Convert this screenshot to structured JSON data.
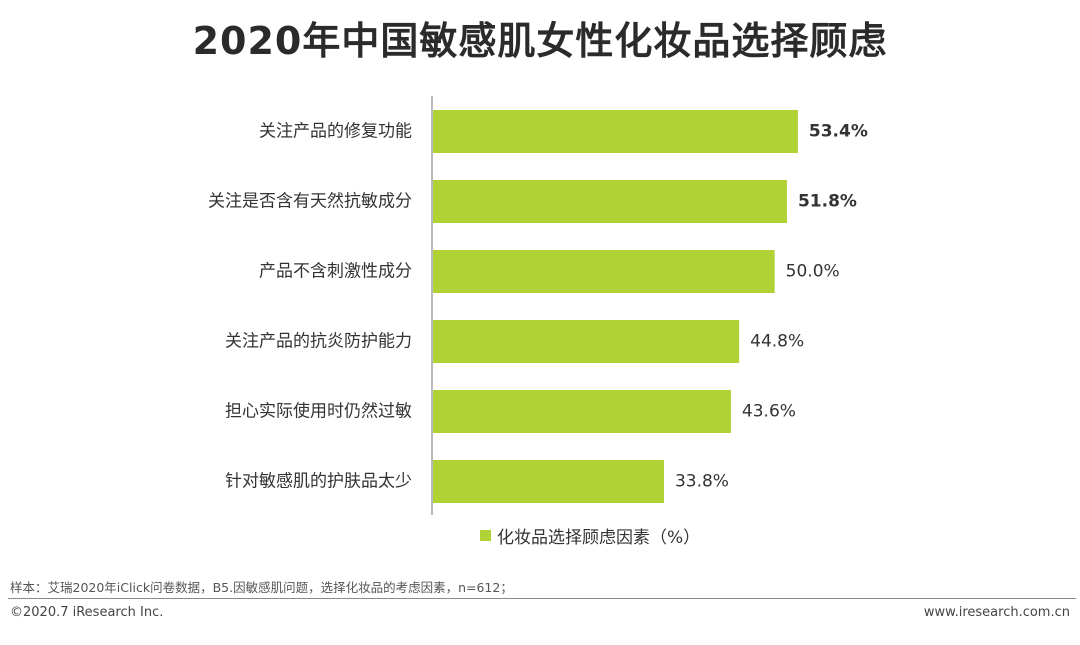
{
  "chart_data": {
    "type": "bar",
    "orientation": "horizontal",
    "title": "2020年中国敏感肌女性化妆品选择顾虑",
    "categories": [
      "关注产品的修复功能",
      "关注是否含有天然抗敏成分",
      "产品不含刺激性成分",
      "关注产品的抗炎防护能力",
      "担心实际使用时仍然过敏",
      "针对敏感肌的护肤品太少"
    ],
    "values": [
      53.4,
      51.8,
      50.0,
      44.8,
      43.6,
      33.8
    ],
    "value_labels": [
      "53.4%",
      "51.8%",
      "50.0%",
      "44.8%",
      "43.6%",
      "33.8%"
    ],
    "bold_labels": [
      true,
      true,
      false,
      false,
      false,
      false
    ],
    "series": [
      {
        "name": "化妆品选择顾虑因素（%）",
        "values": [
          53.4,
          51.8,
          50.0,
          44.8,
          43.6,
          33.8
        ]
      }
    ],
    "xlim": [
      0,
      60
    ],
    "grid": false,
    "legend_position": "bottom",
    "bar_color": "#b0d235"
  },
  "footer": {
    "note": "样本：艾瑞2020年iClick问卷数据，B5.因敏感肌问题，选择化妆品的考虑因素，n=612；",
    "copyright": "©2020.7 iResearch Inc.",
    "website": "www.iresearch.com.cn"
  }
}
